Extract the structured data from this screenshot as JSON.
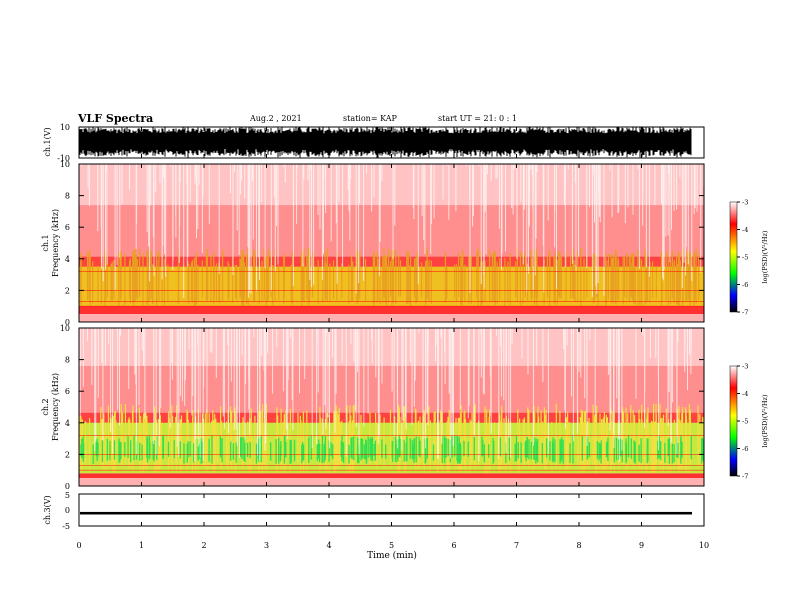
{
  "header": {
    "title": "VLF Spectra",
    "date": "Aug.2 , 2021",
    "station": "station= KAP",
    "start": "start UT = 21: 0 : 1"
  },
  "chart_data": [
    {
      "type": "line",
      "name": "ch1-waveform",
      "ylabel": "ch.1(V)",
      "ylim": [
        -10,
        10
      ],
      "yticks": [
        "10",
        "-10"
      ],
      "xlim": [
        0,
        10
      ],
      "amplitude_range": [
        -10,
        10
      ]
    },
    {
      "type": "heatmap",
      "name": "ch1-spectrogram",
      "ylabel": "ch.1 Frequency (kHz)",
      "ylim": [
        0,
        10
      ],
      "yticks": [
        "0",
        "2",
        "4",
        "6",
        "8",
        "10"
      ],
      "xlim": [
        0,
        10
      ],
      "band_edges_khz": [
        1,
        3.5
      ],
      "colorbar": {
        "label": "log(PSD)(V²/Hz)",
        "range": [
          -7,
          -3
        ],
        "ticks": [
          "-3",
          "-4",
          "-5",
          "-6",
          "-7"
        ],
        "colors": [
          "#ffffff",
          "#ff0000",
          "#ffff00",
          "#00ff00",
          "#0000ff",
          "#000000"
        ]
      }
    },
    {
      "type": "heatmap",
      "name": "ch2-spectrogram",
      "ylabel": "ch.2 Frequency (kHz)",
      "ylim": [
        0,
        10
      ],
      "yticks": [
        "0",
        "2",
        "4",
        "6",
        "8",
        "10"
      ],
      "xlim": [
        0,
        10
      ],
      "band_edges_khz": [
        0.8,
        4
      ],
      "colorbar": {
        "label": "log(PSD)(V²/Hz)",
        "range": [
          -7,
          -3
        ],
        "ticks": [
          "-3",
          "-4",
          "-5",
          "-6",
          "-7"
        ],
        "colors": [
          "#ffffff",
          "#ff0000",
          "#ffff00",
          "#00ff00",
          "#0000ff",
          "#000000"
        ]
      }
    },
    {
      "type": "line",
      "name": "ch3-waveform",
      "ylabel": "ch.3(V)",
      "ylim": [
        -5,
        5
      ],
      "yticks": [
        "5",
        "0",
        "-5"
      ],
      "xlim": [
        0,
        10
      ],
      "xlabel": "Time (min)",
      "xticks": [
        "0",
        "1",
        "2",
        "3",
        "4",
        "5",
        "6",
        "7",
        "8",
        "9",
        "10"
      ],
      "signal_level": -1
    }
  ]
}
